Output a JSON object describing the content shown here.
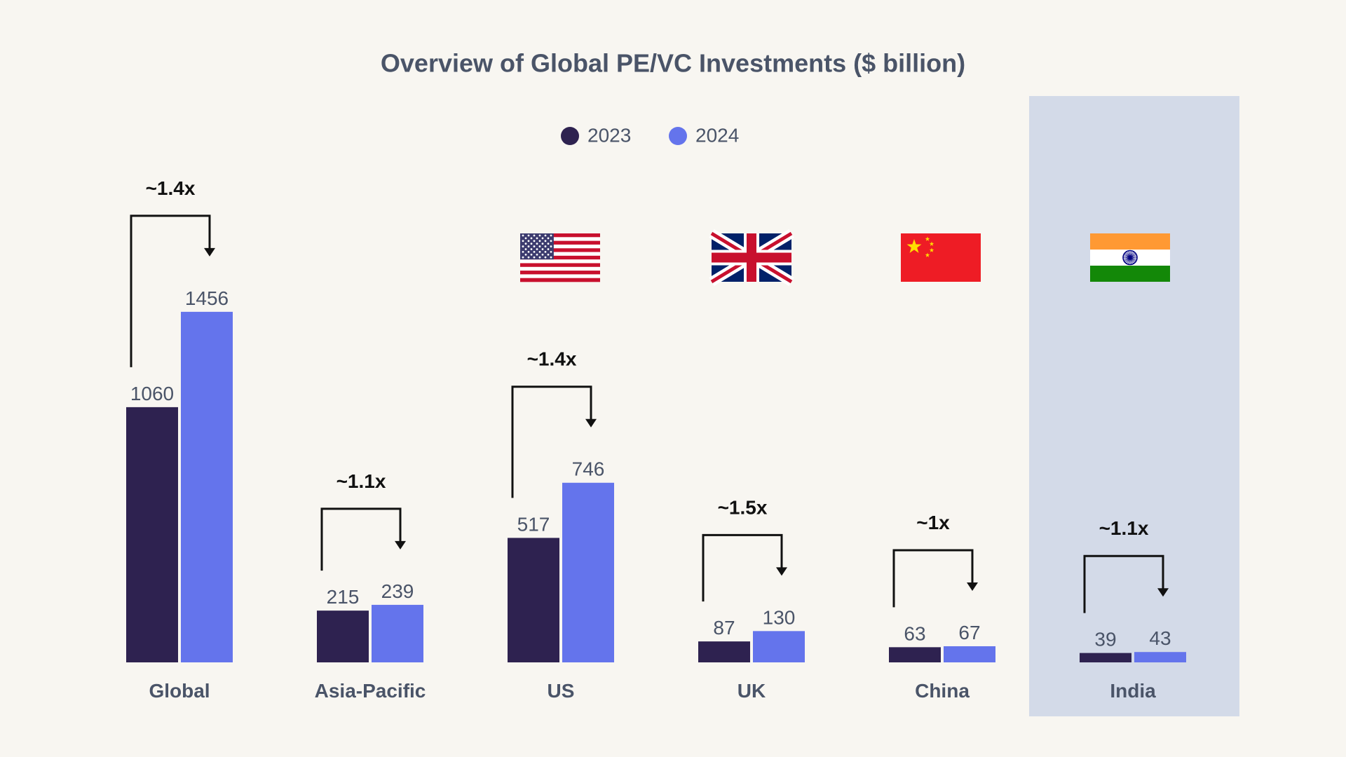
{
  "colors": {
    "background": "#f8f6f1",
    "series_2023": "#2e2250",
    "series_2024": "#6474ec",
    "highlight": "#d3dae8",
    "text": "#4a5468",
    "arrow": "#111111"
  },
  "chart_data": {
    "type": "bar",
    "title": "Overview of Global PE/VC Investments ($ billion)",
    "xlabel": "",
    "ylabel": "",
    "legend_placement": "top-center",
    "grid": false,
    "categories": [
      "Global",
      "Asia-Pacific",
      "US",
      "UK",
      "China",
      "India"
    ],
    "series": [
      {
        "name": "2023",
        "values": [
          1060,
          215,
          517,
          87,
          63,
          39
        ]
      },
      {
        "name": "2024",
        "values": [
          1456,
          239,
          746,
          130,
          67,
          43
        ]
      }
    ],
    "growth_labels": [
      "~1.4x",
      "~1.1x",
      "~1.4x",
      "~1.5x",
      "~1x",
      "~1.1x"
    ],
    "flags": [
      "",
      "",
      "us-flag-icon",
      "uk-flag-icon",
      "china-flag-icon",
      "india-flag-icon"
    ],
    "highlighted_category": "India"
  }
}
